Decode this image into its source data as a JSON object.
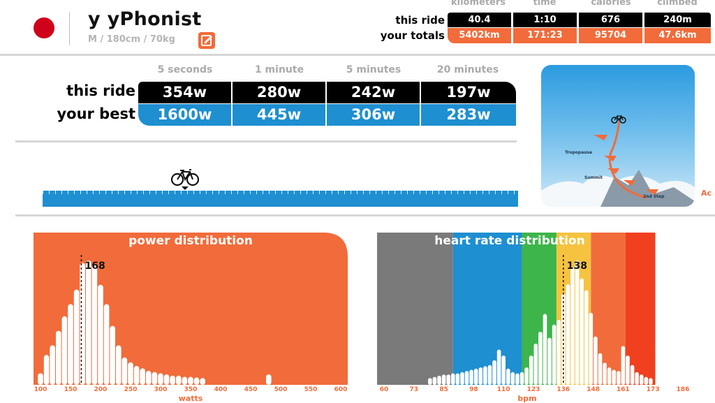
{
  "profile": {
    "name": "y yPhonist",
    "details": "M / 180cm / 70kg",
    "flag_color": "#d0021b"
  },
  "summary": {
    "headers": [
      "kilometers",
      "time",
      "calories",
      "climbed"
    ],
    "row_labels": {
      "this_ride": "this ride",
      "totals": "your totals"
    },
    "this_ride": [
      "40.4",
      "1:10",
      "676",
      "240m"
    ],
    "totals": [
      "5402km",
      "171:23",
      "95704",
      "47.6km"
    ]
  },
  "power_best": {
    "headers": [
      "5 seconds",
      "1 minute",
      "5 minutes",
      "20 minutes"
    ],
    "row_labels": {
      "this_ride": "this ride",
      "best": "your best"
    },
    "this_ride": [
      "354w",
      "280w",
      "242w",
      "197w"
    ],
    "best": [
      "1600w",
      "445w",
      "306w",
      "283w"
    ]
  },
  "route": {
    "cut_label": "Ac",
    "map_labels": [
      "Tropopause",
      "Summit",
      "2nd Step"
    ]
  },
  "colors": {
    "orange": "#f26b3a",
    "blue": "#1e8fd1",
    "black": "#000000",
    "zone_gray": "#7a7a7a",
    "zone_blue": "#1e8fd1",
    "zone_green": "#3db54a",
    "zone_yellow": "#f6c340",
    "zone_orange": "#f26b3a",
    "zone_red": "#f0401f"
  },
  "chart_data": [
    {
      "type": "bar",
      "title": "power distribution",
      "xlabel": "watts",
      "ylabel": "",
      "xlim": [
        100,
        600
      ],
      "x_ticks": [
        "100",
        "150",
        "200",
        "250",
        "300",
        "350",
        "400",
        "450",
        "500",
        "550",
        "600"
      ],
      "marker_value": 168,
      "marker_label": "168",
      "x": [
        100,
        110,
        120,
        130,
        140,
        150,
        160,
        170,
        180,
        190,
        200,
        210,
        220,
        230,
        240,
        250,
        260,
        270,
        280,
        290,
        300,
        310,
        320,
        330,
        340,
        350,
        360,
        370,
        380,
        390,
        400,
        410,
        420,
        430,
        440,
        450,
        460,
        470,
        480,
        490
      ],
      "values": [
        5,
        20,
        28,
        40,
        52,
        62,
        74,
        96,
        98,
        95,
        78,
        62,
        44,
        28,
        18,
        14,
        11,
        9,
        7,
        6,
        5,
        4,
        3,
        3,
        2,
        2,
        1.5,
        1,
        0,
        0,
        0,
        0,
        0,
        0,
        0,
        0,
        0,
        0,
        4,
        0
      ]
    },
    {
      "type": "bar",
      "title": "heart rate distribution",
      "xlabel": "bpm",
      "ylabel": "",
      "xlim": [
        60,
        190
      ],
      "x_ticks": [
        "60",
        "73",
        "85",
        "98",
        "110",
        "123",
        "136",
        "148",
        "161",
        "173",
        "186"
      ],
      "marker_value": 138,
      "marker_label": "138",
      "zones": [
        {
          "from": 60,
          "to": 90,
          "color": "#7a7a7a"
        },
        {
          "from": 90,
          "to": 120,
          "color": "#1e8fd1"
        },
        {
          "from": 120,
          "to": 135,
          "color": "#3db54a"
        },
        {
          "from": 135,
          "to": 150,
          "color": "#f6c340"
        },
        {
          "from": 150,
          "to": 165,
          "color": "#f26b3a"
        },
        {
          "from": 165,
          "to": 178,
          "color": "#f0401f"
        }
      ],
      "x": [
        80,
        82,
        84,
        86,
        88,
        90,
        92,
        94,
        96,
        98,
        100,
        102,
        104,
        106,
        108,
        110,
        112,
        114,
        116,
        118,
        120,
        122,
        124,
        126,
        128,
        130,
        132,
        134,
        136,
        138,
        140,
        142,
        144,
        146,
        148,
        150,
        152,
        154,
        156,
        158,
        160,
        162,
        164,
        166,
        168,
        170,
        172,
        174,
        176
      ],
      "values": [
        1,
        2,
        3,
        4,
        4,
        5,
        5,
        6,
        7,
        8,
        9,
        10,
        11,
        12,
        16,
        25,
        20,
        9,
        6,
        5,
        6,
        10,
        20,
        30,
        40,
        55,
        35,
        46,
        50,
        72,
        80,
        94,
        100,
        85,
        75,
        56,
        36,
        22,
        14,
        10,
        8,
        7,
        28,
        20,
        12,
        6,
        4,
        2,
        1
      ]
    }
  ]
}
